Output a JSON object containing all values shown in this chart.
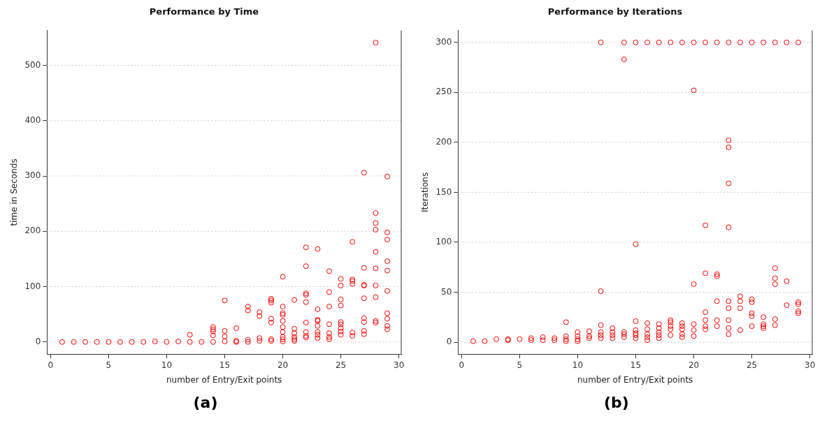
{
  "chart_data": [
    {
      "type": "scatter",
      "title": "Performance by Time",
      "xlabel": "number of Entry/Exit points",
      "ylabel": "time in Seconds",
      "annotations": [
        "(a)"
      ],
      "color": "#ff0000",
      "marker": "circle",
      "grid": "y",
      "legend": false,
      "xlim": [
        -0.3,
        30.2
      ],
      "xticks": [
        0,
        5,
        10,
        15,
        20,
        25,
        30
      ],
      "ylim": [
        -22,
        563
      ],
      "yticks": [
        0,
        100,
        200,
        300,
        400,
        500
      ],
      "x": [
        1,
        2,
        3,
        4,
        5,
        6,
        7,
        8,
        9,
        10,
        11,
        12,
        12,
        13,
        14,
        14,
        14,
        14,
        14,
        15,
        15,
        15,
        15,
        16,
        16,
        16,
        17,
        17,
        17,
        17,
        18,
        18,
        18,
        18,
        19,
        19,
        19,
        19,
        19,
        19,
        19,
        20,
        20,
        20,
        20,
        20,
        20,
        20,
        20,
        20,
        20,
        21,
        21,
        21,
        21,
        21,
        21,
        22,
        22,
        22,
        22,
        22,
        22,
        22,
        22,
        22,
        23,
        23,
        23,
        23,
        23,
        23,
        23,
        23,
        24,
        24,
        24,
        24,
        24,
        24,
        24,
        25,
        25,
        25,
        25,
        25,
        25,
        25,
        25,
        25,
        26,
        26,
        26,
        26,
        26,
        26,
        27,
        27,
        27,
        27,
        27,
        27,
        27,
        27,
        27,
        28,
        28,
        28,
        28,
        28,
        28,
        28,
        28,
        28,
        28,
        29,
        29,
        29,
        29,
        29,
        29,
        29,
        29,
        29,
        29
      ],
      "values": [
        0,
        0,
        0,
        0,
        0,
        0,
        0,
        0,
        1,
        0,
        1,
        0,
        13,
        0,
        0,
        12,
        19,
        23,
        27,
        75,
        20,
        10,
        1,
        25,
        2,
        0,
        64,
        57,
        4,
        0,
        54,
        47,
        7,
        2,
        78,
        75,
        71,
        42,
        35,
        5,
        2,
        118,
        64,
        52,
        49,
        38,
        27,
        18,
        9,
        5,
        1,
        76,
        24,
        16,
        9,
        5,
        2,
        171,
        137,
        88,
        85,
        72,
        35,
        18,
        11,
        8,
        168,
        59,
        40,
        38,
        29,
        18,
        13,
        7,
        128,
        90,
        64,
        32,
        16,
        9,
        5,
        114,
        102,
        77,
        66,
        36,
        32,
        25,
        19,
        13,
        181,
        113,
        110,
        105,
        17,
        11,
        306,
        134,
        103,
        102,
        79,
        43,
        36,
        20,
        14,
        541,
        233,
        215,
        203,
        163,
        133,
        102,
        81,
        38,
        35,
        299,
        198,
        185,
        146,
        129,
        92,
        52,
        42,
        29,
        23
      ]
    },
    {
      "type": "scatter",
      "title": "Performance by Iterations",
      "xlabel": "number of Entry/Exit points",
      "ylabel": "Iterations",
      "annotations": [
        "(b)"
      ],
      "color": "#ff0000",
      "marker": "circle",
      "grid": "y",
      "legend": false,
      "xlim": [
        -0.3,
        30.2
      ],
      "xticks": [
        0,
        5,
        10,
        15,
        20,
        25,
        30
      ],
      "ylim": [
        -12,
        312
      ],
      "yticks": [
        0,
        50,
        100,
        150,
        200,
        250,
        300
      ],
      "x": [
        1,
        2,
        3,
        4,
        4,
        5,
        6,
        6,
        7,
        7,
        8,
        8,
        9,
        9,
        9,
        9,
        10,
        10,
        10,
        10,
        11,
        11,
        11,
        12,
        12,
        12,
        12,
        12,
        12,
        13,
        13,
        13,
        13,
        14,
        14,
        14,
        14,
        14,
        15,
        15,
        15,
        15,
        15,
        15,
        15,
        16,
        16,
        16,
        16,
        16,
        16,
        17,
        17,
        17,
        17,
        17,
        17,
        18,
        18,
        18,
        18,
        18,
        18,
        19,
        19,
        19,
        19,
        19,
        19,
        20,
        20,
        20,
        20,
        20,
        20,
        21,
        21,
        21,
        21,
        21,
        21,
        21,
        22,
        22,
        22,
        22,
        22,
        22,
        23,
        23,
        23,
        23,
        23,
        23,
        23,
        23,
        23,
        23,
        24,
        24,
        24,
        24,
        24,
        25,
        25,
        25,
        25,
        25,
        25,
        26,
        26,
        26,
        26,
        26,
        27,
        27,
        27,
        27,
        27,
        27,
        28,
        28,
        28,
        29,
        29,
        29,
        29,
        29
      ],
      "values": [
        1,
        1,
        3,
        2,
        3,
        3,
        4,
        2,
        5,
        2,
        4,
        2,
        20,
        6,
        3,
        1,
        10,
        6,
        3,
        1,
        11,
        6,
        4,
        300,
        51,
        17,
        10,
        7,
        4,
        14,
        10,
        7,
        4,
        300,
        283,
        10,
        8,
        5,
        300,
        98,
        21,
        12,
        9,
        7,
        4,
        300,
        19,
        13,
        8,
        5,
        2,
        300,
        18,
        14,
        10,
        7,
        4,
        300,
        22,
        20,
        16,
        13,
        7,
        300,
        19,
        16,
        13,
        8,
        5,
        300,
        252,
        58,
        18,
        12,
        6,
        300,
        117,
        69,
        30,
        22,
        16,
        13,
        300,
        68,
        66,
        41,
        22,
        16,
        300,
        202,
        195,
        159,
        115,
        41,
        34,
        22,
        14,
        8,
        300,
        46,
        41,
        34,
        12,
        300,
        43,
        40,
        29,
        26,
        16,
        300,
        25,
        18,
        16,
        14,
        300,
        74,
        64,
        58,
        23,
        17,
        300,
        61,
        37,
        300,
        40,
        38,
        31,
        29
      ]
    }
  ]
}
